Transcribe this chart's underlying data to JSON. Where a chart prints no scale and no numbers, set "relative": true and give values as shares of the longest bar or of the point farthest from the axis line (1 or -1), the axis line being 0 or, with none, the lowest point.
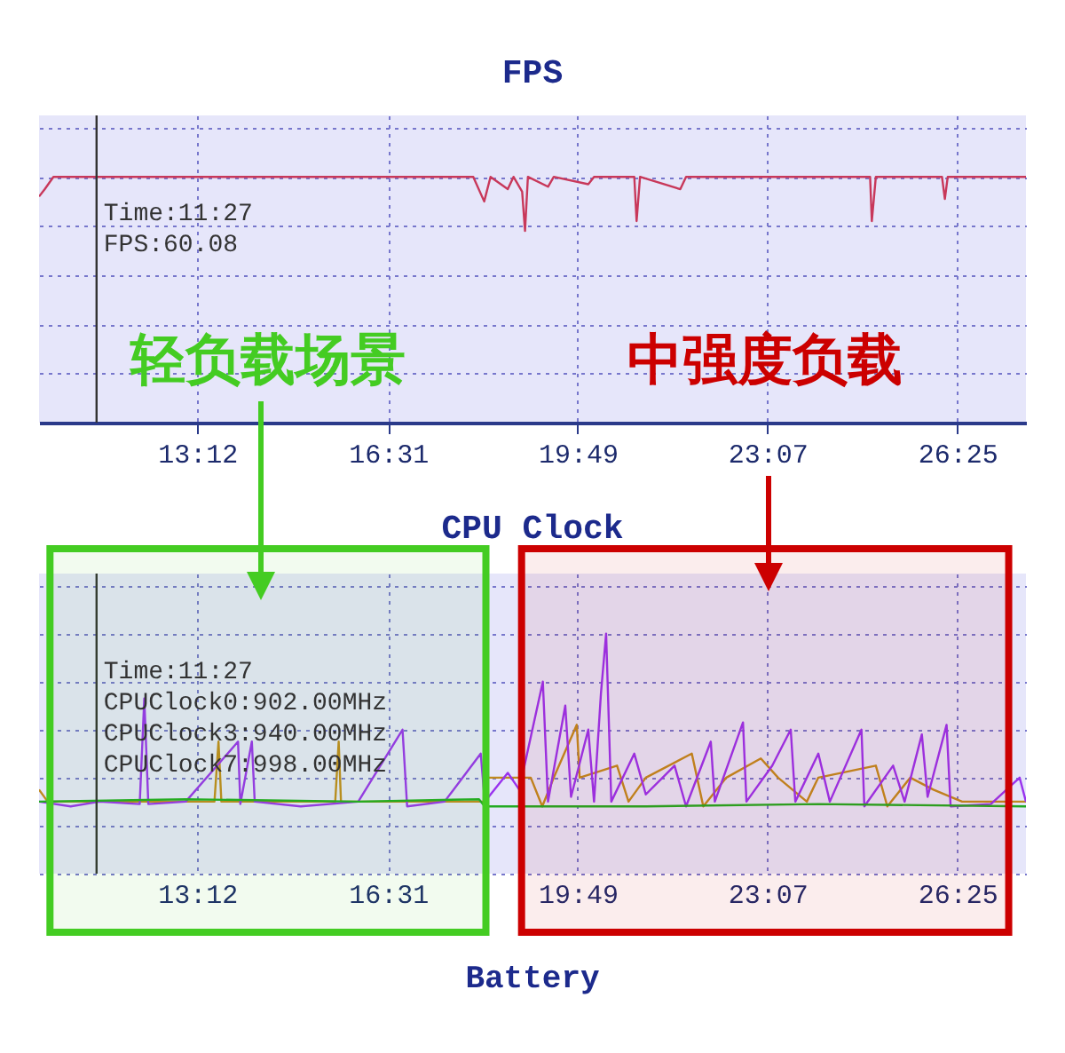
{
  "chart_data": [
    {
      "type": "line",
      "title": "FPS",
      "relative": true,
      "tick_labels": "x",
      "grid": true,
      "xlim": [
        10.45,
        27.61
      ],
      "xticks": [
        {
          "value": 13.2,
          "label": "13:12"
        },
        {
          "value": 16.517,
          "label": "16:31"
        },
        {
          "value": 19.817,
          "label": "19:49"
        },
        {
          "value": 23.117,
          "label": "23:07"
        },
        {
          "value": 26.417,
          "label": "26:25"
        }
      ],
      "ref_lines": [
        {
          "axis": "x",
          "value": 11.45,
          "label": null,
          "color": "#333333"
        }
      ],
      "annotations": [
        "Time:11:27",
        "FPS:60.08"
      ],
      "series": [
        {
          "color": "#c8385a",
          "x": [
            10.45,
            10.55,
            10.7,
            12,
            14,
            16,
            18.0,
            18.19,
            18.3,
            18.6,
            18.7,
            18.85,
            18.9,
            18.95,
            19.3,
            19.4,
            20.0,
            20.1,
            20.8,
            20.84,
            20.9,
            21.6,
            21.7,
            24.0,
            24.9,
            24.93,
            25.0,
            26.15,
            26.2,
            26.25,
            27.61
          ],
          "values": [
            0.92,
            0.95,
            1,
            1,
            1,
            1,
            1,
            0.9,
            1,
            0.95,
            1,
            0.94,
            0.78,
            1,
            0.96,
            1,
            0.97,
            1,
            1,
            0.82,
            1,
            0.95,
            1,
            1,
            1,
            0.82,
            1,
            1,
            0.91,
            1,
            1
          ]
        }
      ]
    },
    {
      "type": "line",
      "title": "CPU Clock",
      "relative": true,
      "tick_labels": "x",
      "grid": true,
      "xlim": [
        10.45,
        27.61
      ],
      "xticks": [
        {
          "value": 13.2,
          "label": "13:12"
        },
        {
          "value": 16.517,
          "label": "16:31"
        },
        {
          "value": 19.817,
          "label": "19:49"
        },
        {
          "value": 23.117,
          "label": "23:07"
        },
        {
          "value": 26.417,
          "label": "26:25"
        }
      ],
      "ref_lines": [
        {
          "axis": "x",
          "value": 11.45,
          "label": null,
          "color": "#333333"
        }
      ],
      "bands": [
        {
          "axis": "x",
          "from": 10.64,
          "to": 18.22,
          "label": "轻负载场景",
          "color": "#44cc22"
        },
        {
          "axis": "x",
          "from": 18.84,
          "to": 27.31,
          "label": "中强度负载",
          "color": "#cc0000"
        }
      ],
      "annotations": [
        "Time:11:27",
        "CPUClock0:902.00MHz",
        "CPUClock3:940.00MHz",
        "CPUClock7:998.00MHz"
      ],
      "series": [
        {
          "color": "#c08a20",
          "x": [
            10.45,
            10.6,
            13.5,
            13.57,
            13.62,
            15.6,
            15.66,
            15.7,
            17,
            18.2,
            18.25,
            19,
            19.2,
            19.4,
            19.8,
            19.85,
            20.5,
            20.7,
            21,
            21.8,
            22,
            22.4,
            23,
            23.3,
            23.8,
            24,
            25,
            25.2,
            25.6,
            26.0,
            26.5,
            27.61
          ],
          "values": [
            0.35,
            0.3,
            0.3,
            0.55,
            0.3,
            0.3,
            0.55,
            0.3,
            0.3,
            0.3,
            0.4,
            0.4,
            0.28,
            0.4,
            0.62,
            0.4,
            0.45,
            0.3,
            0.4,
            0.5,
            0.28,
            0.4,
            0.48,
            0.4,
            0.3,
            0.4,
            0.45,
            0.28,
            0.4,
            0.35,
            0.3,
            0.3
          ]
        },
        {
          "color": "#9933ee",
          "x": [
            10.45,
            11,
            11.5,
            12.2,
            12.28,
            12.35,
            13,
            13.91,
            13.95,
            14.15,
            14.2,
            15,
            16,
            16.77,
            16.85,
            17.5,
            18.13,
            18.2,
            18.6,
            18.8,
            19.21,
            19.3,
            19.6,
            19.7,
            20.0,
            20.1,
            20.22,
            20.31,
            20.4,
            20.8,
            21.0,
            21.5,
            21.7,
            22.13,
            22.2,
            22.69,
            22.75,
            23.2,
            23.52,
            23.6,
            24.0,
            24.2,
            24.75,
            24.8,
            25.3,
            25.5,
            25.8,
            25.9,
            26.23,
            26.3,
            27.0,
            27.5,
            27.61
          ],
          "values": [
            0.3,
            0.28,
            0.3,
            0.29,
            0.73,
            0.29,
            0.3,
            0.55,
            0.29,
            0.55,
            0.3,
            0.28,
            0.3,
            0.6,
            0.28,
            0.3,
            0.5,
            0.3,
            0.42,
            0.35,
            0.8,
            0.3,
            0.7,
            0.32,
            0.6,
            0.3,
            0.75,
            1.0,
            0.3,
            0.5,
            0.33,
            0.45,
            0.28,
            0.55,
            0.3,
            0.63,
            0.3,
            0.45,
            0.6,
            0.3,
            0.5,
            0.3,
            0.6,
            0.28,
            0.45,
            0.3,
            0.58,
            0.32,
            0.62,
            0.28,
            0.29,
            0.4,
            0.3
          ]
        },
        {
          "color": "#22aa22",
          "x": [
            10.45,
            13,
            16,
            18.1,
            18.2,
            21,
            24,
            27.61
          ],
          "values": [
            0.3,
            0.31,
            0.3,
            0.31,
            0.28,
            0.28,
            0.29,
            0.28
          ]
        }
      ]
    },
    {
      "type": "other",
      "title": "Battery"
    }
  ]
}
